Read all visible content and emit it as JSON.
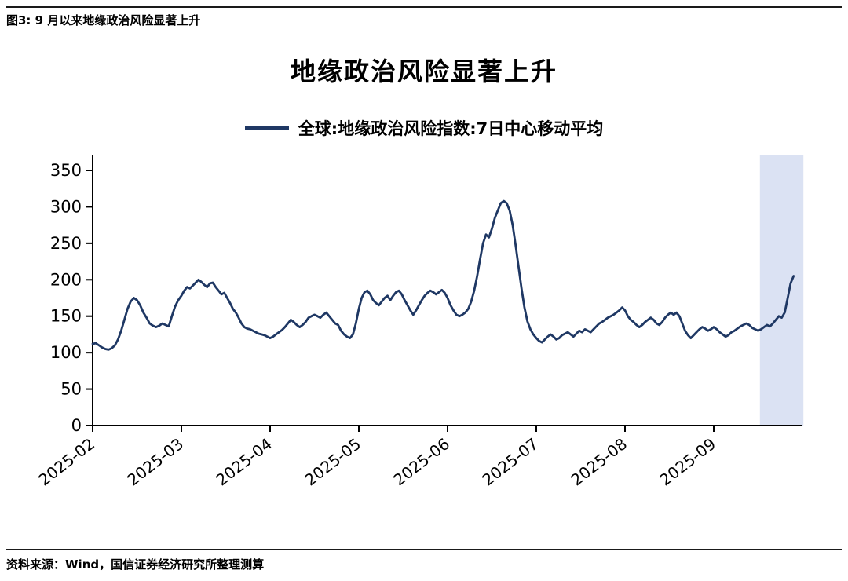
{
  "figure_caption": "图3: 9 月以来地缘政治风险显著上升",
  "source_caption": "资料来源：Wind，国信证券经济研究所整理测算",
  "chart_data": {
    "type": "line",
    "title": "地缘政治风险显著上升",
    "legend": "全球:地缘政治风险指数:7日中心移动平均",
    "xlabel": "",
    "ylabel": "",
    "line_color": "#1f3864",
    "highlight_color": "#dbe2f3",
    "axis_color": "#000000",
    "grid": false,
    "legend_position": "top",
    "ylim": [
      0,
      370
    ],
    "y_ticks": [
      0,
      50,
      100,
      150,
      200,
      250,
      300,
      350
    ],
    "x_tick_labels": [
      "2025-02",
      "2025-03",
      "2025-04",
      "2025-05",
      "2025-06",
      "2025-07",
      "2025-08",
      "2025-09"
    ],
    "month_days": [
      28,
      31,
      30,
      31,
      30,
      31,
      31,
      30
    ],
    "highlight_region_months": [
      7.52,
      8.01
    ],
    "series": [
      {
        "name": "全球:地缘政治风险指数:7日中心移动平均",
        "values": [
          112,
          113,
          110,
          107,
          105,
          104,
          106,
          110,
          118,
          130,
          145,
          160,
          170,
          175,
          172,
          165,
          155,
          148,
          140,
          137,
          135,
          137,
          140,
          138,
          136,
          150,
          163,
          172,
          178,
          185,
          190,
          188,
          192,
          196,
          200,
          197,
          193,
          190,
          195,
          196,
          190,
          185,
          180,
          182,
          175,
          168,
          160,
          155,
          148,
          140,
          135,
          133,
          132,
          130,
          128,
          126,
          125,
          124,
          122,
          120,
          122,
          125,
          128,
          131,
          135,
          140,
          145,
          142,
          138,
          135,
          138,
          142,
          148,
          150,
          152,
          150,
          148,
          152,
          155,
          150,
          145,
          140,
          138,
          130,
          125,
          122,
          120,
          125,
          140,
          160,
          175,
          183,
          185,
          180,
          172,
          168,
          165,
          170,
          175,
          178,
          172,
          178,
          183,
          185,
          180,
          172,
          165,
          158,
          152,
          158,
          165,
          172,
          178,
          182,
          185,
          183,
          180,
          183,
          186,
          182,
          175,
          165,
          158,
          152,
          150,
          152,
          155,
          160,
          170,
          185,
          205,
          228,
          250,
          262,
          258,
          270,
          285,
          295,
          305,
          308,
          305,
          295,
          275,
          248,
          218,
          188,
          162,
          143,
          132,
          125,
          120,
          116,
          114,
          118,
          122,
          125,
          122,
          118,
          120,
          124,
          126,
          128,
          125,
          122,
          126,
          130,
          128,
          132,
          130,
          128,
          132,
          136,
          140,
          142,
          145,
          148,
          150,
          152,
          155,
          158,
          162,
          158,
          150,
          145,
          142,
          138,
          135,
          138,
          142,
          145,
          148,
          145,
          140,
          138,
          142,
          148,
          152,
          155,
          152,
          155,
          150,
          140,
          130,
          124,
          120,
          124,
          128,
          132,
          135,
          133,
          130,
          132,
          135,
          132,
          128,
          125,
          122,
          124,
          128,
          130,
          133,
          136,
          138,
          140,
          138,
          134,
          132,
          130,
          132,
          135,
          138,
          136,
          140,
          145,
          150,
          148,
          155,
          175,
          195,
          205
        ]
      }
    ]
  }
}
